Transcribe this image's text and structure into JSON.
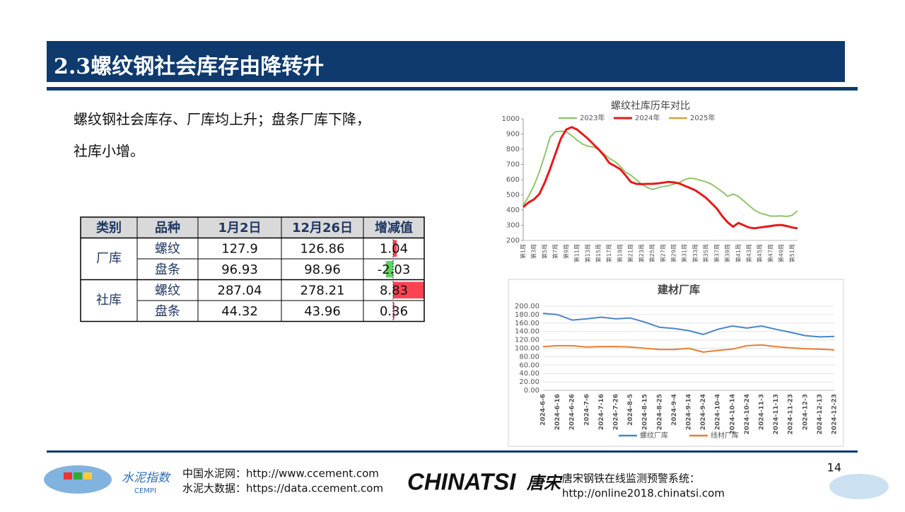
{
  "header": {
    "title": "2.3螺纹钢社会库存由降转升"
  },
  "intro": {
    "lines": [
      "螺纹钢社会库存、厂库均上升；盘条厂库下降，",
      "社库小增。"
    ]
  },
  "table": {
    "headers": [
      "类别",
      "品种",
      "1月2日",
      "12月26日",
      "增减值"
    ],
    "groups": [
      {
        "name": "厂库",
        "rows": [
          [
            "螺纹",
            "127.9",
            "126.86",
            "1.04"
          ],
          [
            "盘条",
            "96.93",
            "98.96",
            "-2.03"
          ]
        ]
      },
      {
        "name": "社库",
        "rows": [
          [
            "螺纹",
            "287.04",
            "278.21",
            "8.83"
          ],
          [
            "盘条",
            "44.32",
            "43.96",
            "0.36"
          ]
        ]
      }
    ]
  },
  "chart_data": [
    {
      "type": "line",
      "title": "螺纹社库历年对比",
      "grid": false,
      "legend": "top",
      "categories": [
        "第1周",
        null,
        "第3周",
        null,
        "第5周",
        null,
        "第7周",
        null,
        "第9周",
        null,
        "第11周",
        null,
        "第13周",
        null,
        "第15周",
        null,
        "第17周",
        null,
        "第19周",
        null,
        "第21周",
        null,
        "第23周",
        null,
        "第25周",
        null,
        "第27周",
        null,
        "第29周",
        null,
        "第31周",
        null,
        "第33周",
        null,
        "第35周",
        null,
        "第37周",
        null,
        "第39周",
        null,
        "第41周",
        null,
        "第43周",
        null,
        "第45周",
        null,
        "第47周",
        null,
        "第49周",
        null,
        "第51周",
        null
      ],
      "ylim": [
        200,
        1000
      ],
      "yticks": [
        200,
        300,
        400,
        500,
        600,
        700,
        800,
        900,
        1000
      ],
      "series": [
        {
          "name": "2023年",
          "color": "#92c46c",
          "values": [
            430,
            490,
            560,
            650,
            760,
            880,
            915,
            918,
            915,
            890,
            860,
            835,
            820,
            815,
            800,
            770,
            740,
            720,
            690,
            650,
            630,
            600,
            570,
            550,
            535,
            545,
            555,
            560,
            570,
            580,
            600,
            610,
            605,
            595,
            585,
            570,
            545,
            520,
            490,
            505,
            490,
            460,
            430,
            400,
            380,
            370,
            360,
            360,
            362,
            358,
            365,
            395
          ]
        },
        {
          "name": "2024年",
          "color": "#e81818",
          "values": [
            420,
            450,
            470,
            505,
            580,
            670,
            770,
            870,
            930,
            945,
            930,
            900,
            870,
            835,
            800,
            760,
            710,
            690,
            670,
            630,
            585,
            572,
            570,
            572,
            572,
            575,
            580,
            585,
            582,
            575,
            560,
            545,
            530,
            505,
            480,
            445,
            410,
            360,
            320,
            290,
            315,
            300,
            285,
            280,
            285,
            290,
            295,
            300,
            302,
            295,
            285,
            280
          ]
        },
        {
          "name": "2025年",
          "color": "#d4a43c",
          "values": [
            420,
            null,
            null,
            null,
            null,
            null,
            null,
            null,
            null,
            null,
            null,
            null,
            null,
            null,
            null,
            null,
            null,
            null,
            null,
            null,
            null,
            null,
            null,
            null,
            null,
            null,
            null,
            null,
            null,
            null,
            null,
            null,
            null,
            null,
            null,
            null,
            null,
            null,
            null,
            null,
            null,
            null,
            null,
            null,
            null,
            null,
            null,
            null,
            null,
            null,
            null,
            null
          ]
        }
      ]
    },
    {
      "type": "line",
      "title": "建材厂库",
      "grid": true,
      "legend": "bottom",
      "categories": [
        "2024-6-6",
        "2024-6-16",
        "2024-6-26",
        "2024-7-6",
        "2024-7-16",
        "2024-7-26",
        "2024-8-5",
        "2024-8-15",
        "2024-8-25",
        "2024-9-4",
        "2024-9-14",
        "2024-9-24",
        "2024-10-4",
        "2024-10-14",
        "2024-10-24",
        "2024-11-3",
        "2024-11-13",
        "2024-11-23",
        "2024-12-3",
        "2024-12-13",
        "2024-12-23"
      ],
      "ylim": [
        0,
        200
      ],
      "yticks": [
        {
          "value": 0,
          "label": "0.00"
        },
        {
          "value": 20,
          "label": "20.00"
        },
        {
          "value": 40,
          "label": "40.00"
        },
        {
          "value": 60,
          "label": "60.00"
        },
        {
          "value": 80,
          "label": "80.00"
        },
        {
          "value": 100,
          "label": "100.00"
        },
        {
          "value": 120,
          "label": "120.00"
        },
        {
          "value": 140,
          "label": "140.00"
        },
        {
          "value": 160,
          "label": "160.00"
        },
        {
          "value": 180,
          "label": "180.00"
        },
        {
          "value": 200,
          "label": "200.00"
        }
      ],
      "series": [
        {
          "name": "螺纹厂库",
          "color": "#4a86c8",
          "values": [
            183,
            180,
            167,
            170,
            174,
            170,
            172,
            162,
            150,
            147,
            142,
            133,
            145,
            153,
            148,
            153,
            145,
            138,
            130,
            127,
            128
          ]
        },
        {
          "name": "线材厂库",
          "color": "#ed7d31",
          "values": [
            104,
            106,
            106,
            103,
            104,
            104,
            103,
            100,
            97,
            97,
            100,
            91,
            95,
            98,
            106,
            108,
            104,
            101,
            99,
            98,
            96
          ]
        }
      ]
    }
  ],
  "footer": {
    "site": "中国水泥网：http://www.ccement.com",
    "data_site": "水泥大数据：https://data.ccement.com",
    "logo_index": "水泥指数",
    "logo_index_en": "CEMPI",
    "brand": "CHINATSI",
    "brand_cn": "唐宋",
    "system": "唐宋钢铁在线监测预警系统：",
    "system_url": "http://online2018.chinatsi.com",
    "page": "14"
  }
}
